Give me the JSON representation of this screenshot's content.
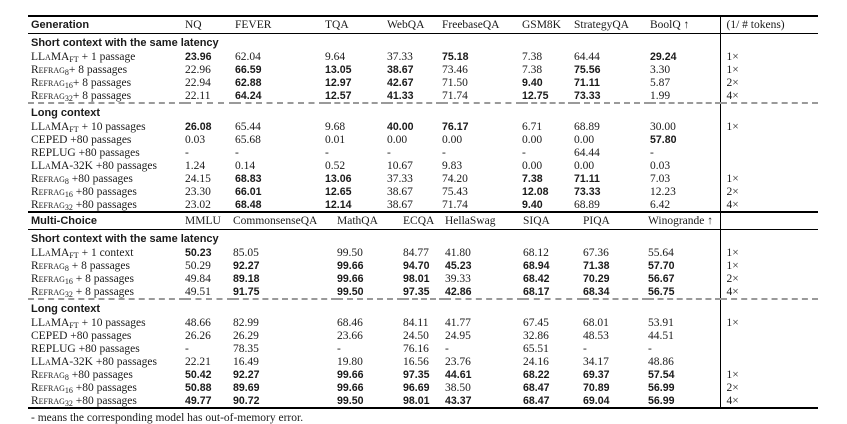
{
  "footnote": "- means the corresponding model has out-of-memory error.",
  "colors": {
    "rule": "#000000",
    "dash": "#9a9a9a",
    "text": "#1a1a1a",
    "background": "#ffffff"
  },
  "tables": [
    {
      "id": "generation",
      "corner_label": "Generation",
      "columns": [
        "NQ",
        "FEVER",
        "TQA",
        "WebQA",
        "FreebaseQA",
        "GSM8K",
        "StrategyQA",
        "BoolQ ↑"
      ],
      "tokens_header": "(1/ # tokens)",
      "sections": [
        {
          "title": "Short context with the same latency",
          "dashed": false,
          "rows": [
            {
              "model": {
                "name": "LLaMA",
                "sub": "FT",
                "rest": " + 1 passage"
              },
              "values": [
                "23.96",
                "62.04",
                "9.64",
                "37.33",
                "75.18",
                "7.38",
                "64.44",
                "29.24"
              ],
              "bold": [
                1,
                0,
                0,
                0,
                1,
                0,
                0,
                1
              ],
              "speedup": "1×"
            },
            {
              "model": {
                "name": "Refrag",
                "sub": "8",
                "rest": "+ 8 passages"
              },
              "values": [
                "22.96",
                "66.59",
                "13.05",
                "38.67",
                "73.46",
                "7.38",
                "75.56",
                "3.30"
              ],
              "bold": [
                0,
                1,
                1,
                1,
                0,
                0,
                1,
                0
              ],
              "speedup": "1×"
            },
            {
              "model": {
                "name": "Refrag",
                "sub": "16",
                "rest": "+ 8 passages"
              },
              "values": [
                "22.94",
                "62.88",
                "12.97",
                "42.67",
                "71.50",
                "9.40",
                "71.11",
                "5.87"
              ],
              "bold": [
                0,
                1,
                1,
                1,
                0,
                1,
                1,
                0
              ],
              "speedup": "2×"
            },
            {
              "model": {
                "name": "Refrag",
                "sub": "32",
                "rest": "+ 8 passages"
              },
              "values": [
                "22.11",
                "64.24",
                "12.57",
                "41.33",
                "71.74",
                "12.75",
                "73.33",
                "1.99"
              ],
              "bold": [
                0,
                1,
                1,
                1,
                0,
                1,
                1,
                0
              ],
              "speedup": "4×"
            }
          ]
        },
        {
          "title": "Long context",
          "dashed": true,
          "rows": [
            {
              "model": {
                "name": "LLaMA",
                "sub": "FT",
                "rest": " + 10 passages"
              },
              "values": [
                "26.08",
                "65.44",
                "9.68",
                "40.00",
                "76.17",
                "6.71",
                "68.89",
                "30.00"
              ],
              "bold": [
                1,
                0,
                0,
                1,
                1,
                0,
                0,
                0
              ],
              "speedup": "1×"
            },
            {
              "model": {
                "name": "CEPED",
                "sub": "",
                "rest": " +80 passages"
              },
              "values": [
                "0.03",
                "65.68",
                "0.01",
                "0.00",
                "0.00",
                "0.00",
                "0.00",
                "57.80"
              ],
              "bold": [
                0,
                0,
                0,
                0,
                0,
                0,
                0,
                1
              ],
              "speedup": ""
            },
            {
              "model": {
                "name": "REPLUG",
                "sub": "",
                "rest": " +80 passages"
              },
              "values": [
                "-",
                "-",
                "-",
                "-",
                "-",
                "-",
                "64.44",
                "-"
              ],
              "bold": [
                0,
                0,
                0,
                0,
                0,
                0,
                0,
                0
              ],
              "speedup": ""
            },
            {
              "model": {
                "name": "LLaMA-32K",
                "sub": "",
                "rest": " +80 passages"
              },
              "values": [
                "1.24",
                "0.14",
                "0.52",
                "10.67",
                "9.83",
                "0.00",
                "0.00",
                "0.03"
              ],
              "bold": [
                0,
                0,
                0,
                0,
                0,
                0,
                0,
                0
              ],
              "speedup": ""
            },
            {
              "model": {
                "name": "Refrag",
                "sub": "8",
                "rest": " +80 passages"
              },
              "values": [
                "24.15",
                "68.83",
                "13.06",
                "37.33",
                "74.20",
                "7.38",
                "71.11",
                "7.03"
              ],
              "bold": [
                0,
                1,
                1,
                0,
                0,
                1,
                1,
                0
              ],
              "speedup": "1×"
            },
            {
              "model": {
                "name": "Refrag",
                "sub": "16",
                "rest": " +80 passages"
              },
              "values": [
                "23.30",
                "66.01",
                "12.65",
                "38.67",
                "75.43",
                "12.08",
                "73.33",
                "12.23"
              ],
              "bold": [
                0,
                1,
                1,
                0,
                0,
                1,
                1,
                0
              ],
              "speedup": "2×"
            },
            {
              "model": {
                "name": "Refrag",
                "sub": "32",
                "rest": " +80 passages"
              },
              "values": [
                "23.02",
                "68.48",
                "12.14",
                "38.67",
                "71.74",
                "9.40",
                "68.89",
                "6.42"
              ],
              "bold": [
                0,
                1,
                1,
                0,
                0,
                1,
                0,
                0
              ],
              "speedup": "4×"
            }
          ]
        }
      ]
    },
    {
      "id": "multichoice",
      "corner_label": "Multi-Choice",
      "columns": [
        "MMLU",
        "CommonsenseQA",
        "MathQA",
        "ECQA",
        "HellaSwag",
        "SIQA",
        "PIQA",
        "Winogrande ↑"
      ],
      "tokens_header": "",
      "sections": [
        {
          "title": "Short context with the same latency",
          "dashed": false,
          "rows": [
            {
              "model": {
                "name": "LLaMA",
                "sub": "FT",
                "rest": " + 1 context"
              },
              "values": [
                "50.23",
                "85.05",
                "99.50",
                "84.77",
                "41.80",
                "68.12",
                "67.36",
                "55.64"
              ],
              "bold": [
                1,
                0,
                0,
                0,
                0,
                0,
                0,
                0
              ],
              "speedup": "1×"
            },
            {
              "model": {
                "name": "Refrag",
                "sub": "8",
                "rest": " + 8 passages"
              },
              "values": [
                "50.29",
                "92.27",
                "99.66",
                "94.70",
                "45.23",
                "68.94",
                "71.38",
                "57.70"
              ],
              "bold": [
                0,
                1,
                1,
                1,
                1,
                1,
                1,
                1
              ],
              "speedup": "1×"
            },
            {
              "model": {
                "name": "Refrag",
                "sub": "16",
                "rest": " + 8 passages"
              },
              "values": [
                "49.84",
                "89.18",
                "99.66",
                "98.01",
                "39.33",
                "68.42",
                "70.29",
                "56.67"
              ],
              "bold": [
                0,
                1,
                1,
                1,
                0,
                1,
                1,
                1
              ],
              "speedup": "2×"
            },
            {
              "model": {
                "name": "Refrag",
                "sub": "32",
                "rest": " + 8 passages"
              },
              "values": [
                "49.51",
                "91.75",
                "99.50",
                "97.35",
                "42.86",
                "68.17",
                "68.34",
                "56.75"
              ],
              "bold": [
                0,
                1,
                1,
                1,
                1,
                1,
                1,
                1
              ],
              "speedup": "4×"
            }
          ]
        },
        {
          "title": "Long context",
          "dashed": true,
          "rows": [
            {
              "model": {
                "name": "LLaMA",
                "sub": "FT",
                "rest": " + 10 passages"
              },
              "values": [
                "48.66",
                "82.99",
                "68.46",
                "84.11",
                "41.77",
                "67.45",
                "68.01",
                "53.91"
              ],
              "bold": [
                0,
                0,
                0,
                0,
                0,
                0,
                0,
                0
              ],
              "speedup": "1×"
            },
            {
              "model": {
                "name": "CEPED",
                "sub": "",
                "rest": " +80 passages"
              },
              "values": [
                "26.26",
                "26.29",
                "23.66",
                "24.50",
                "24.95",
                "32.86",
                "48.53",
                "44.51"
              ],
              "bold": [
                0,
                0,
                0,
                0,
                0,
                0,
                0,
                0
              ],
              "speedup": ""
            },
            {
              "model": {
                "name": "REPLUG",
                "sub": "",
                "rest": " +80 passages"
              },
              "values": [
                "-",
                "78.35",
                "-",
                "76.16",
                "-",
                "65.51",
                "-",
                "-"
              ],
              "bold": [
                0,
                0,
                0,
                0,
                0,
                0,
                0,
                0
              ],
              "speedup": ""
            },
            {
              "model": {
                "name": "LLaMA-32K",
                "sub": "",
                "rest": " +80 passages"
              },
              "values": [
                "22.21",
                "16.49",
                "19.80",
                "16.56",
                "23.76",
                "24.16",
                "34.17",
                "48.86"
              ],
              "bold": [
                0,
                0,
                0,
                0,
                0,
                0,
                0,
                0
              ],
              "speedup": ""
            },
            {
              "model": {
                "name": "Refrag",
                "sub": "8",
                "rest": " +80 passages"
              },
              "values": [
                "50.42",
                "92.27",
                "99.66",
                "97.35",
                "44.61",
                "68.22",
                "69.37",
                "57.54"
              ],
              "bold": [
                1,
                1,
                1,
                1,
                1,
                1,
                1,
                1
              ],
              "speedup": "1×"
            },
            {
              "model": {
                "name": "Refrag",
                "sub": "16",
                "rest": " +80 passages"
              },
              "values": [
                "50.88",
                "89.69",
                "99.66",
                "96.69",
                "38.50",
                "68.47",
                "70.89",
                "56.99"
              ],
              "bold": [
                1,
                1,
                1,
                1,
                0,
                1,
                1,
                1
              ],
              "speedup": "2×"
            },
            {
              "model": {
                "name": "Refrag",
                "sub": "32",
                "rest": " +80 passages"
              },
              "values": [
                "49.77",
                "90.72",
                "99.50",
                "98.01",
                "43.37",
                "68.47",
                "69.04",
                "56.99"
              ],
              "bold": [
                1,
                1,
                1,
                1,
                1,
                1,
                1,
                1
              ],
              "speedup": "4×"
            }
          ]
        }
      ]
    }
  ]
}
